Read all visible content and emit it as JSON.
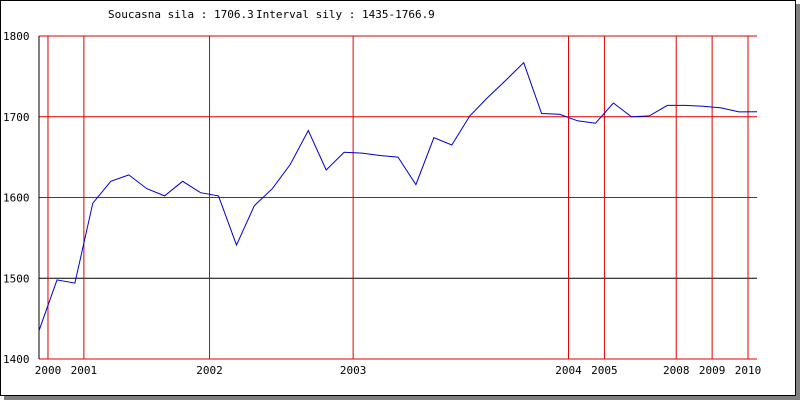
{
  "header": {
    "current_label": "Soucasna sila : 1706.3",
    "interval_label": "Interval sily : 1435-1766.9"
  },
  "chart_data": {
    "type": "line",
    "title": "",
    "xlabel": "",
    "ylabel": "",
    "ylim": [
      1400,
      1800
    ],
    "y_ticks": [
      1400,
      1500,
      1600,
      1700,
      1800
    ],
    "grid": "red gridlines at every y tick except 1500 (black) and at every x tick label position",
    "x_tick_labels": [
      {
        "label": "2000",
        "x": 0.5
      },
      {
        "label": "2001",
        "x": 2.5
      },
      {
        "label": "2002",
        "x": 9.5
      },
      {
        "label": "2003",
        "x": 17.5
      },
      {
        "label": "2004",
        "x": 29.5
      },
      {
        "label": "2005",
        "x": 31.5
      },
      {
        "label": "2008",
        "x": 35.5
      },
      {
        "label": "2009",
        "x": 37.5
      },
      {
        "label": "2010",
        "x": 39.5
      }
    ],
    "series": [
      {
        "name": "",
        "color": "#0000cc",
        "x": [
          0,
          1,
          2,
          3,
          4,
          5,
          6,
          7,
          8,
          9,
          10,
          11,
          12,
          13,
          14,
          15,
          16,
          17,
          18,
          19,
          20,
          21,
          22,
          23,
          24,
          25,
          26,
          27,
          28,
          29,
          30,
          31,
          32,
          33,
          34,
          35,
          36,
          37,
          38,
          39,
          40
        ],
        "values": [
          1435,
          1498,
          1494,
          1593,
          1620,
          1628,
          1611,
          1602,
          1620,
          1606,
          1602,
          1541,
          1590,
          1611,
          1641,
          1683,
          1634,
          1656,
          1655,
          1652,
          1650,
          1616,
          1674,
          1665,
          1701,
          1724,
          1745,
          1766.9,
          1704,
          1703,
          1695,
          1692,
          1717,
          1700,
          1701,
          1714,
          1714,
          1713,
          1711,
          1706,
          1706.3
        ]
      }
    ]
  }
}
